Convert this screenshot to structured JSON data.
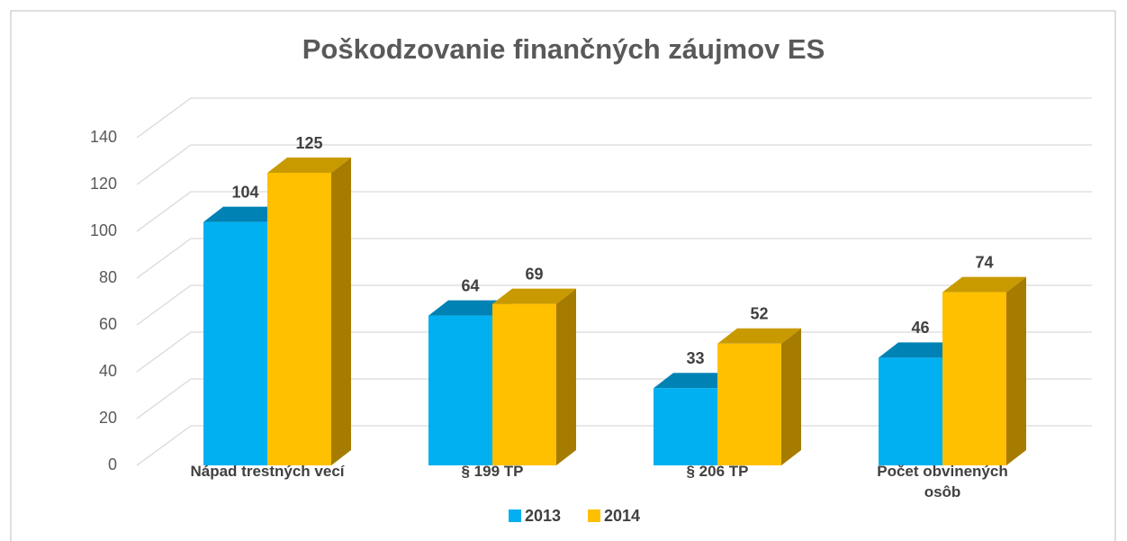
{
  "chart_data": {
    "type": "bar3d",
    "title": "Poškodzovanie finančných záujmov ES",
    "categories": [
      "Nápad trestných vecí",
      "§ 199 TP",
      "§ 206 TP",
      "Počet obvinených osôb"
    ],
    "series": [
      {
        "name": "2013",
        "color": "#00b0f0",
        "top": "#0082b4",
        "side": "#0070a0",
        "values": [
          104,
          64,
          33,
          46
        ]
      },
      {
        "name": "2014",
        "color": "#ffc000",
        "top": "#c99a00",
        "side": "#a67c00",
        "values": [
          125,
          69,
          52,
          74
        ]
      }
    ],
    "ylim": [
      0,
      140
    ],
    "yticks": [
      0,
      20,
      40,
      60,
      80,
      100,
      120,
      140
    ],
    "grid": true,
    "legend": "bottom"
  }
}
